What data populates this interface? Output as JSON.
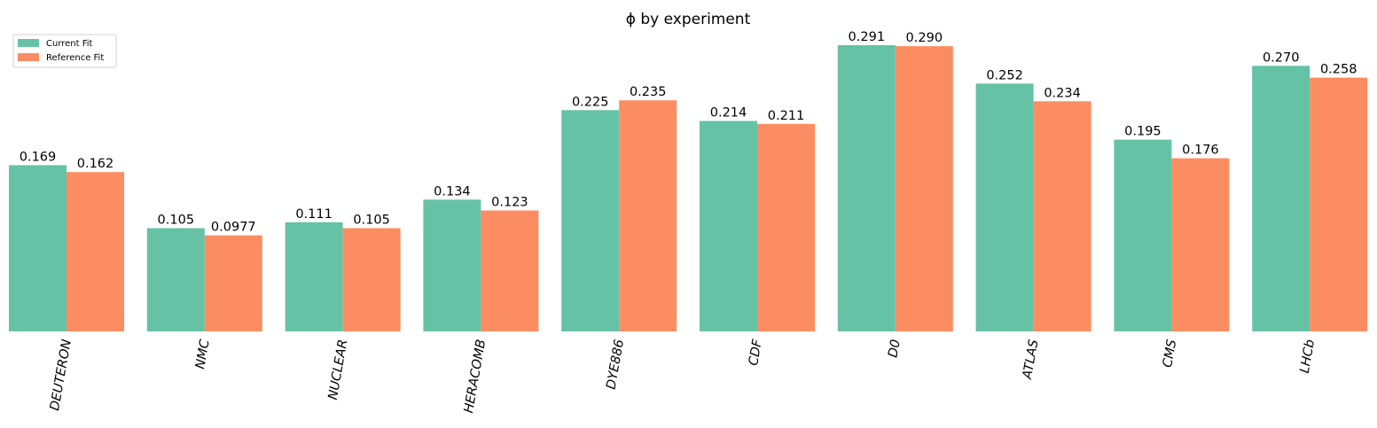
{
  "chart_data": {
    "type": "bar",
    "title": "ϕ by experiment",
    "xlabel": "",
    "ylabel": "",
    "categories": [
      "DEUTERON",
      "NMC",
      "NUCLEAR",
      "HERACOMB",
      "DYE886",
      "CDF",
      "D0",
      "ATLAS",
      "CMS",
      "LHCb"
    ],
    "series": [
      {
        "name": "Current Fit",
        "color": "#66c2a5",
        "values": [
          0.169,
          0.105,
          0.111,
          0.134,
          0.225,
          0.214,
          0.291,
          0.252,
          0.195,
          0.27
        ],
        "labels": [
          "0.169",
          "0.105",
          "0.111",
          "0.134",
          "0.225",
          "0.214",
          "0.291",
          "0.252",
          "0.195",
          "0.270"
        ]
      },
      {
        "name": "Reference Fit",
        "color": "#fc8d62",
        "values": [
          0.162,
          0.0977,
          0.105,
          0.123,
          0.235,
          0.211,
          0.29,
          0.234,
          0.176,
          0.258
        ],
        "labels": [
          "0.162",
          "0.0977",
          "0.105",
          "0.123",
          "0.235",
          "0.211",
          "0.290",
          "0.234",
          "0.176",
          "0.258"
        ]
      }
    ],
    "ylim": [
      0,
      0.291
    ],
    "grid": false,
    "legend": "top-left"
  }
}
